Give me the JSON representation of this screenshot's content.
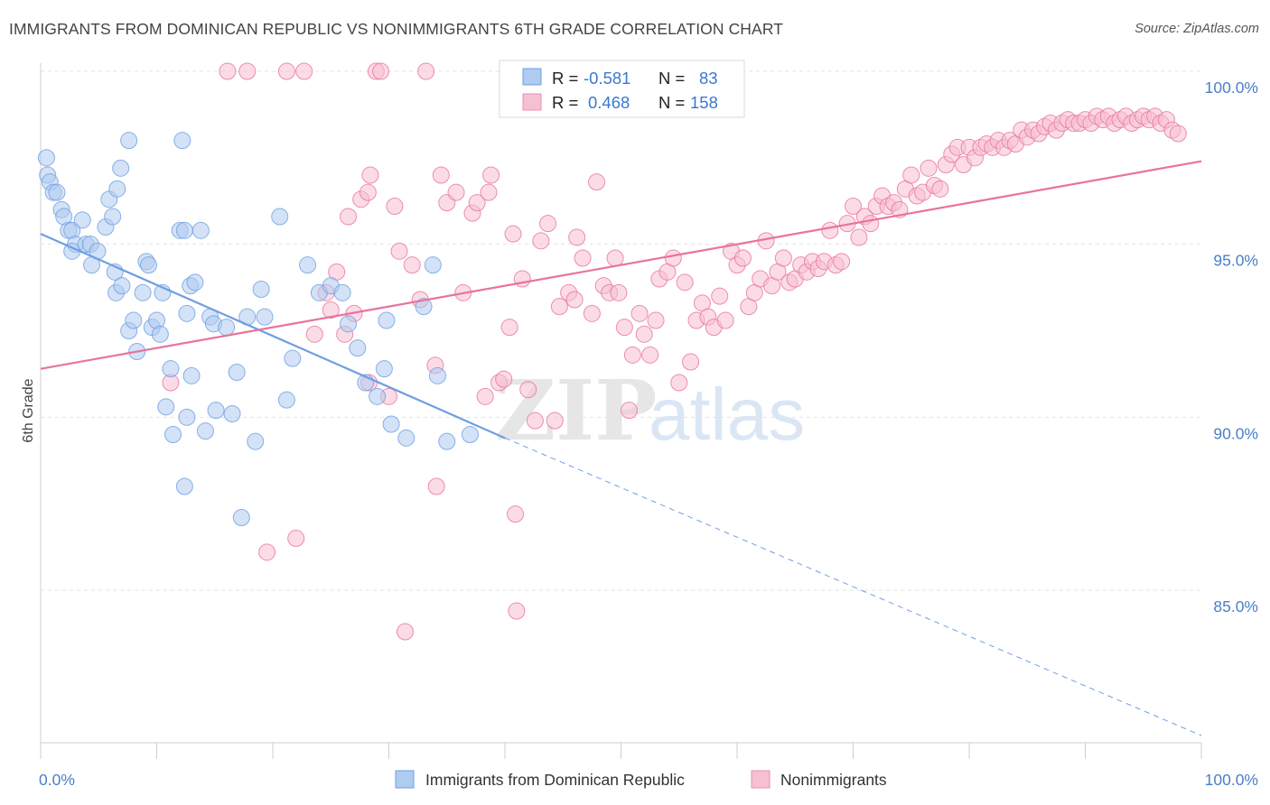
{
  "title": "IMMIGRANTS FROM DOMINICAN REPUBLIC VS NONIMMIGRANTS 6TH GRADE CORRELATION CHART",
  "source": "Source: ZipAtlas.com",
  "watermark": {
    "zip": "ZIP",
    "atlas": "atlas"
  },
  "stats": [
    {
      "r_label": "R =",
      "r_value": "-0.581",
      "n_label": "N =",
      "n_value": "83",
      "fill": "#aecbf0",
      "stroke": "#6e9fe0"
    },
    {
      "r_label": "R =",
      "r_value": "0.468",
      "n_label": "N =",
      "n_value": "158",
      "fill": "#f7bfd2",
      "stroke": "#ea8fb0"
    }
  ],
  "chart_data": {
    "type": "scatter",
    "xlabel": "",
    "ylabel": "6th Grade",
    "xlim": [
      0,
      100
    ],
    "ylim": [
      80.7,
      100.8
    ],
    "x_tick_labels": [
      {
        "value": 0,
        "label": "0.0%"
      },
      {
        "value": 100,
        "label": "100.0%"
      }
    ],
    "y_ticks": [
      {
        "value": 100,
        "label": "100.0%"
      },
      {
        "value": 95,
        "label": "95.0%"
      },
      {
        "value": 90,
        "label": "90.0%"
      },
      {
        "value": 85,
        "label": "85.0%"
      }
    ],
    "x_minor_ticks": [
      0,
      10,
      20,
      30,
      40,
      50,
      60,
      70,
      80,
      90,
      100
    ],
    "grid": true,
    "legend_position": "bottom",
    "series": [
      {
        "name": "Immigrants from Dominican Republic",
        "color": "#6e9fe0",
        "fill": "#aecbf0",
        "trend": {
          "x0": 0,
          "y0": 95.3,
          "x1": 40,
          "y1": 89.4,
          "dash_to_x": 100,
          "dash_to_y": 80.8
        },
        "points": [
          [
            0.5,
            97.5
          ],
          [
            0.6,
            97.0
          ],
          [
            0.8,
            96.8
          ],
          [
            1.1,
            96.5
          ],
          [
            1.4,
            96.5
          ],
          [
            1.8,
            96.0
          ],
          [
            2.0,
            95.8
          ],
          [
            2.4,
            95.4
          ],
          [
            2.7,
            95.4
          ],
          [
            3.0,
            95.0
          ],
          [
            3.6,
            95.7
          ],
          [
            2.7,
            94.8
          ],
          [
            3.9,
            95.0
          ],
          [
            4.3,
            95.0
          ],
          [
            4.9,
            94.8
          ],
          [
            5.6,
            95.5
          ],
          [
            4.4,
            94.4
          ],
          [
            5.9,
            96.3
          ],
          [
            6.2,
            95.8
          ],
          [
            6.6,
            96.6
          ],
          [
            6.9,
            97.2
          ],
          [
            7.6,
            98.0
          ],
          [
            6.4,
            94.2
          ],
          [
            6.5,
            93.6
          ],
          [
            7.0,
            93.8
          ],
          [
            7.6,
            92.5
          ],
          [
            8.0,
            92.8
          ],
          [
            8.3,
            91.9
          ],
          [
            8.8,
            93.6
          ],
          [
            9.1,
            94.5
          ],
          [
            9.3,
            94.4
          ],
          [
            9.6,
            92.6
          ],
          [
            10.0,
            92.8
          ],
          [
            10.3,
            92.4
          ],
          [
            10.5,
            93.6
          ],
          [
            10.8,
            90.3
          ],
          [
            11.2,
            91.4
          ],
          [
            11.4,
            89.5
          ],
          [
            12.0,
            95.4
          ],
          [
            12.2,
            98.0
          ],
          [
            12.4,
            95.4
          ],
          [
            12.4,
            88.0
          ],
          [
            12.6,
            90.0
          ],
          [
            12.6,
            93.0
          ],
          [
            12.9,
            93.8
          ],
          [
            13.0,
            91.2
          ],
          [
            13.3,
            93.9
          ],
          [
            13.8,
            95.4
          ],
          [
            14.2,
            89.6
          ],
          [
            14.6,
            92.9
          ],
          [
            14.9,
            92.7
          ],
          [
            15.1,
            90.2
          ],
          [
            16.0,
            92.6
          ],
          [
            16.5,
            90.1
          ],
          [
            16.9,
            91.3
          ],
          [
            17.3,
            87.1
          ],
          [
            17.8,
            92.9
          ],
          [
            18.5,
            89.3
          ],
          [
            19.0,
            93.7
          ],
          [
            19.3,
            92.9
          ],
          [
            20.6,
            95.8
          ],
          [
            21.2,
            90.5
          ],
          [
            21.7,
            91.7
          ],
          [
            23.0,
            94.4
          ],
          [
            24.0,
            93.6
          ],
          [
            25.0,
            93.8
          ],
          [
            26.0,
            93.6
          ],
          [
            26.5,
            92.7
          ],
          [
            27.3,
            92.0
          ],
          [
            28.0,
            91.0
          ],
          [
            29.0,
            90.6
          ],
          [
            29.6,
            91.4
          ],
          [
            29.8,
            92.8
          ],
          [
            30.2,
            89.8
          ],
          [
            31.5,
            89.4
          ],
          [
            33.0,
            93.2
          ],
          [
            33.8,
            94.4
          ],
          [
            34.2,
            91.2
          ],
          [
            35.0,
            89.3
          ],
          [
            37.0,
            89.5
          ]
        ]
      },
      {
        "name": "Nonimmigrants",
        "color": "#e8739e",
        "fill": "#f7bfd2",
        "trend": {
          "x0": 0,
          "y0": 91.4,
          "x1": 100,
          "y1": 97.4
        },
        "points": [
          [
            11.2,
            91.0
          ],
          [
            16.1,
            100.0
          ],
          [
            17.8,
            100.0
          ],
          [
            19.5,
            86.1
          ],
          [
            21.2,
            100.0
          ],
          [
            22.0,
            86.5
          ],
          [
            22.7,
            100.0
          ],
          [
            23.6,
            92.4
          ],
          [
            24.6,
            93.6
          ],
          [
            25.0,
            93.1
          ],
          [
            25.5,
            94.2
          ],
          [
            26.2,
            92.4
          ],
          [
            26.5,
            95.8
          ],
          [
            27.0,
            93.0
          ],
          [
            27.6,
            96.3
          ],
          [
            28.2,
            96.5
          ],
          [
            28.3,
            91.0
          ],
          [
            28.4,
            97.0
          ],
          [
            28.9,
            100.0
          ],
          [
            29.3,
            100.0
          ],
          [
            30.0,
            90.6
          ],
          [
            30.5,
            96.1
          ],
          [
            30.9,
            94.8
          ],
          [
            31.4,
            83.8
          ],
          [
            32.0,
            94.4
          ],
          [
            32.7,
            93.4
          ],
          [
            33.2,
            100.0
          ],
          [
            34.0,
            91.5
          ],
          [
            34.1,
            88.0
          ],
          [
            34.5,
            97.0
          ],
          [
            35.0,
            96.2
          ],
          [
            35.8,
            96.5
          ],
          [
            36.4,
            93.6
          ],
          [
            37.2,
            95.9
          ],
          [
            37.6,
            96.2
          ],
          [
            38.3,
            90.6
          ],
          [
            38.6,
            96.5
          ],
          [
            38.8,
            97.0
          ],
          [
            39.5,
            91.0
          ],
          [
            39.9,
            91.1
          ],
          [
            40.4,
            92.6
          ],
          [
            40.7,
            95.3
          ],
          [
            40.9,
            87.2
          ],
          [
            41.0,
            84.4
          ],
          [
            41.5,
            94.0
          ],
          [
            42.0,
            90.8
          ],
          [
            42.6,
            89.9
          ],
          [
            43.1,
            95.1
          ],
          [
            43.7,
            95.6
          ],
          [
            44.3,
            89.9
          ],
          [
            44.7,
            93.2
          ],
          [
            45.5,
            93.6
          ],
          [
            46.0,
            93.4
          ],
          [
            46.2,
            95.2
          ],
          [
            46.7,
            94.6
          ],
          [
            47.5,
            93.0
          ],
          [
            47.9,
            96.8
          ],
          [
            48.5,
            93.8
          ],
          [
            49.0,
            93.6
          ],
          [
            49.5,
            94.6
          ],
          [
            49.8,
            93.6
          ],
          [
            50.3,
            92.6
          ],
          [
            50.7,
            90.2
          ],
          [
            51.0,
            91.8
          ],
          [
            51.6,
            93.0
          ],
          [
            52.0,
            92.4
          ],
          [
            52.5,
            91.8
          ],
          [
            53.0,
            92.8
          ],
          [
            53.3,
            94.0
          ],
          [
            54.0,
            94.2
          ],
          [
            54.5,
            94.6
          ],
          [
            55.0,
            91.0
          ],
          [
            55.5,
            93.9
          ],
          [
            56.0,
            91.6
          ],
          [
            56.5,
            92.8
          ],
          [
            57.0,
            93.3
          ],
          [
            57.5,
            92.9
          ],
          [
            58.0,
            92.6
          ],
          [
            58.5,
            93.5
          ],
          [
            59.0,
            92.8
          ],
          [
            59.5,
            94.8
          ],
          [
            60.0,
            94.4
          ],
          [
            60.5,
            94.6
          ],
          [
            61.0,
            93.2
          ],
          [
            61.5,
            93.6
          ],
          [
            62.0,
            94.0
          ],
          [
            62.5,
            95.1
          ],
          [
            63.0,
            93.8
          ],
          [
            63.5,
            94.2
          ],
          [
            64.0,
            94.6
          ],
          [
            64.5,
            93.9
          ],
          [
            65.0,
            94.0
          ],
          [
            65.5,
            94.4
          ],
          [
            66.0,
            94.2
          ],
          [
            66.5,
            94.5
          ],
          [
            67.0,
            94.3
          ],
          [
            67.5,
            94.5
          ],
          [
            68.0,
            95.4
          ],
          [
            68.5,
            94.4
          ],
          [
            69.0,
            94.5
          ],
          [
            69.5,
            95.6
          ],
          [
            70.0,
            96.1
          ],
          [
            70.5,
            95.2
          ],
          [
            71.0,
            95.8
          ],
          [
            71.5,
            95.6
          ],
          [
            72.0,
            96.1
          ],
          [
            72.5,
            96.4
          ],
          [
            73.0,
            96.1
          ],
          [
            73.5,
            96.2
          ],
          [
            74.0,
            96.0
          ],
          [
            74.5,
            96.6
          ],
          [
            75.0,
            97.0
          ],
          [
            75.5,
            96.4
          ],
          [
            76.0,
            96.5
          ],
          [
            76.5,
            97.2
          ],
          [
            77.0,
            96.7
          ],
          [
            77.5,
            96.6
          ],
          [
            78.0,
            97.3
          ],
          [
            78.5,
            97.6
          ],
          [
            79.0,
            97.8
          ],
          [
            79.5,
            97.3
          ],
          [
            80.0,
            97.8
          ],
          [
            80.5,
            97.5
          ],
          [
            81.0,
            97.8
          ],
          [
            81.5,
            97.9
          ],
          [
            82.0,
            97.8
          ],
          [
            82.5,
            98.0
          ],
          [
            83.0,
            97.8
          ],
          [
            83.5,
            98.0
          ],
          [
            84.0,
            97.9
          ],
          [
            84.5,
            98.3
          ],
          [
            85.0,
            98.1
          ],
          [
            85.5,
            98.3
          ],
          [
            86.0,
            98.2
          ],
          [
            86.5,
            98.4
          ],
          [
            87.0,
            98.5
          ],
          [
            87.5,
            98.3
          ],
          [
            88.0,
            98.5
          ],
          [
            88.5,
            98.6
          ],
          [
            89.0,
            98.5
          ],
          [
            89.5,
            98.5
          ],
          [
            90.0,
            98.6
          ],
          [
            90.5,
            98.5
          ],
          [
            91.0,
            98.7
          ],
          [
            91.5,
            98.6
          ],
          [
            92.0,
            98.7
          ],
          [
            92.5,
            98.5
          ],
          [
            93.0,
            98.6
          ],
          [
            93.5,
            98.7
          ],
          [
            94.0,
            98.5
          ],
          [
            94.5,
            98.6
          ],
          [
            95.0,
            98.7
          ],
          [
            95.5,
            98.6
          ],
          [
            96.0,
            98.7
          ],
          [
            96.5,
            98.5
          ],
          [
            97.0,
            98.6
          ],
          [
            97.5,
            98.3
          ],
          [
            98.0,
            98.2
          ]
        ]
      }
    ]
  }
}
